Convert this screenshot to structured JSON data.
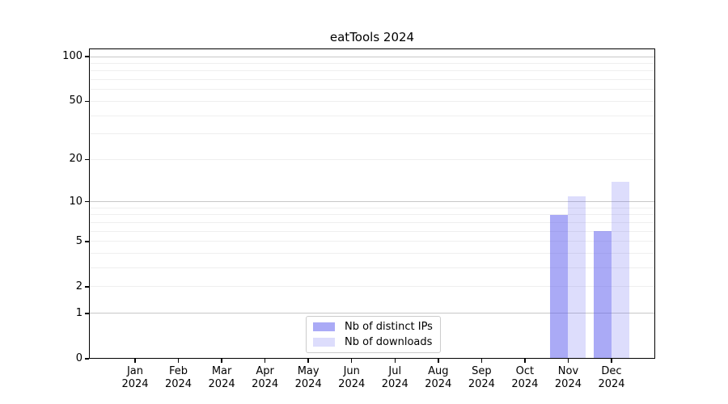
{
  "chart_data": {
    "type": "bar",
    "title": "eatTools 2024",
    "categories": [
      "Jan 2024",
      "Feb 2024",
      "Mar 2024",
      "Apr 2024",
      "May 2024",
      "Jun 2024",
      "Jul 2024",
      "Aug 2024",
      "Sep 2024",
      "Oct 2024",
      "Nov 2024",
      "Dec 2024"
    ],
    "series": [
      {
        "name": "Nb of distinct IPs",
        "color_rgb": "85,85,238",
        "fill_opacity": 0.5,
        "values": [
          0,
          0,
          0,
          0,
          0,
          0,
          0,
          0,
          0,
          0,
          8,
          6
        ]
      },
      {
        "name": "Nb of downloads",
        "color_rgb": "85,85,238",
        "fill_opacity": 0.2,
        "values": [
          0,
          0,
          0,
          0,
          0,
          0,
          0,
          0,
          0,
          0,
          11,
          14
        ]
      }
    ],
    "xlabel": "",
    "ylabel": "",
    "y_scale": "log1p",
    "ylim": [
      0,
      113
    ],
    "y_axis": {
      "tick_labels": [
        0,
        1,
        2,
        5,
        10,
        20,
        50,
        100
      ],
      "major_gridlines": [
        1,
        10,
        100
      ],
      "minor_gridlines": [
        2,
        3,
        4,
        5,
        6,
        7,
        8,
        9,
        20,
        30,
        40,
        50,
        60,
        70,
        80,
        90
      ]
    },
    "grid": true,
    "legend_position": "lower center"
  },
  "colors": {
    "background": "#ffffff",
    "axis": "#000000",
    "text": "#000000",
    "major_grid": "#c8c8c8",
    "minor_grid": "#efefef",
    "legend_border": "#cccccc"
  }
}
